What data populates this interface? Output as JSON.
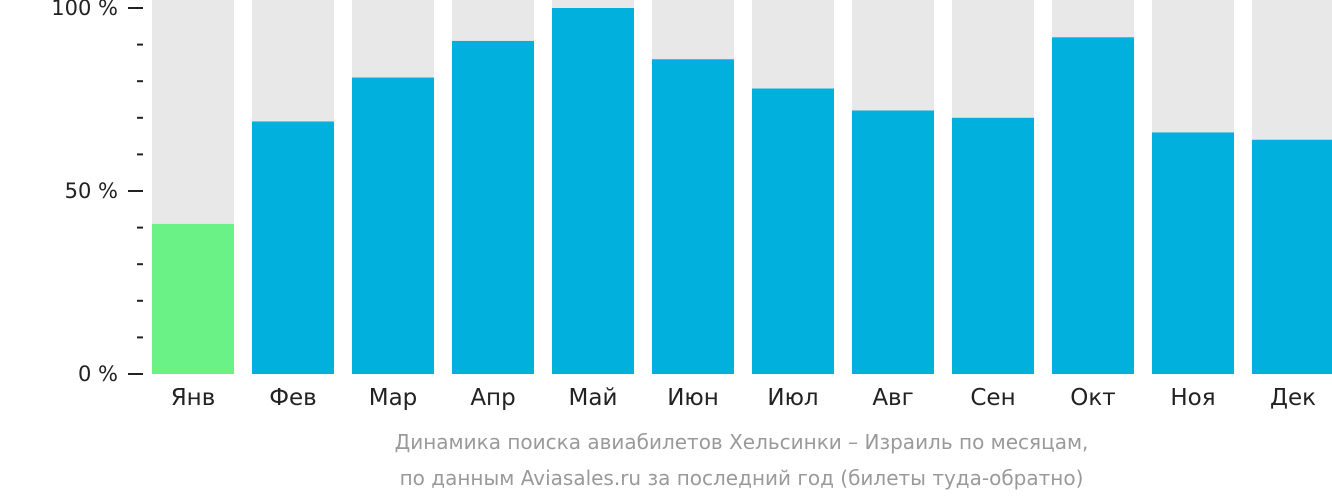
{
  "chart_data": {
    "type": "bar",
    "categories": [
      "Янв",
      "Фев",
      "Мар",
      "Апр",
      "Май",
      "Июн",
      "Июл",
      "Авг",
      "Сен",
      "Окт",
      "Ноя",
      "Дек"
    ],
    "values": [
      41,
      69,
      81,
      91,
      100,
      86,
      78,
      72,
      70,
      92,
      66,
      64
    ],
    "ylim": [
      0,
      100
    ],
    "y_ticks": [
      {
        "value": 0,
        "label": "0 %"
      },
      {
        "value": 50,
        "label": "50 %"
      },
      {
        "value": 100,
        "label": "100 %"
      }
    ],
    "y_minor_ticks": [
      10,
      20,
      30,
      40,
      60,
      70,
      80,
      90
    ],
    "colors": {
      "bar": "#02b0dd",
      "highlight_bar": "#6bf286",
      "background_bar": "#e8e8e8",
      "axis": "#222222"
    },
    "highlight_index": 0,
    "caption_line1": "Динамика поиска авиабилетов Хельсинки – Израиль по месяцам,",
    "caption_line2": "по данным Aviasales.ru за последний год (билеты туда-обратно)"
  }
}
